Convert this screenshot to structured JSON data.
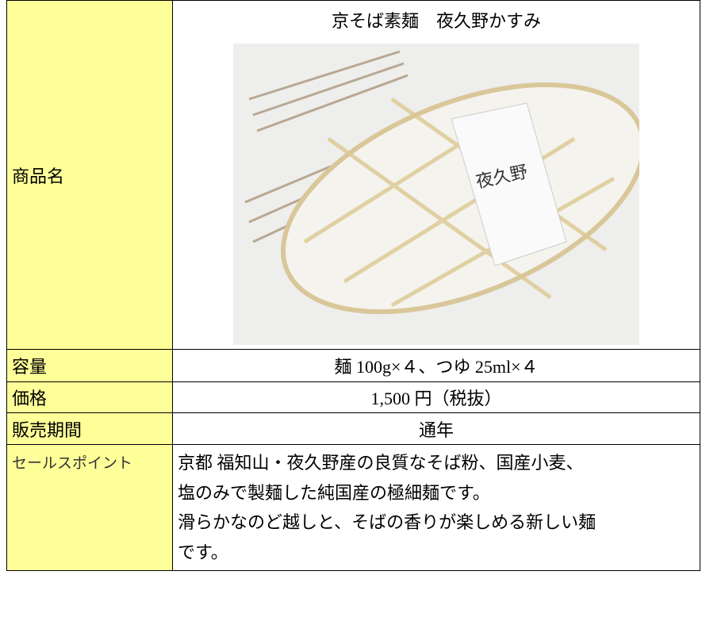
{
  "table": {
    "rows": [
      {
        "label": "商品名",
        "value": "京そば素麺　夜久野かすみ"
      },
      {
        "label": "容量",
        "value": "麺 100g×４、つゆ 25ml×４"
      },
      {
        "label": "価格",
        "value": "1,500 円（税抜）"
      },
      {
        "label": "販売期間",
        "value": "通年"
      },
      {
        "label": "セールスポイント",
        "lines": [
          "京都 福知山・夜久野産の良質なそば粉、国産小麦、",
          "塩のみで製麺した純国産の極細麺です。",
          "滑らかなのど越しと、そばの香りが楽しめる新しい麺",
          "です。"
        ]
      }
    ]
  }
}
